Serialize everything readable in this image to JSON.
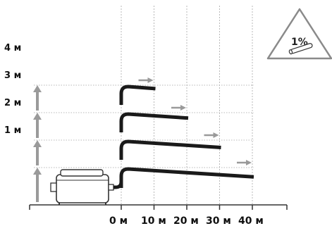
{
  "height_labels": [
    "1 м",
    "2 м",
    "3 м",
    "4 м"
  ],
  "distance_labels": [
    "0 м",
    "10 м",
    "20 м",
    "30 м",
    "40 м"
  ],
  "pipe_runs": [
    {
      "height_m": 1,
      "length_m": 40
    },
    {
      "height_m": 2,
      "length_m": 30
    },
    {
      "height_m": 3,
      "length_m": 20
    },
    {
      "height_m": 4,
      "length_m": 10
    }
  ],
  "slope_sign": {
    "text": "1%"
  },
  "colors": {
    "pipe": "#1a1a1a",
    "arrow": "#9a9a9a",
    "gridline": "#b8b8b8",
    "ground": "#333333",
    "pump_outline": "#333333",
    "pump_fill": "#ffffff"
  }
}
